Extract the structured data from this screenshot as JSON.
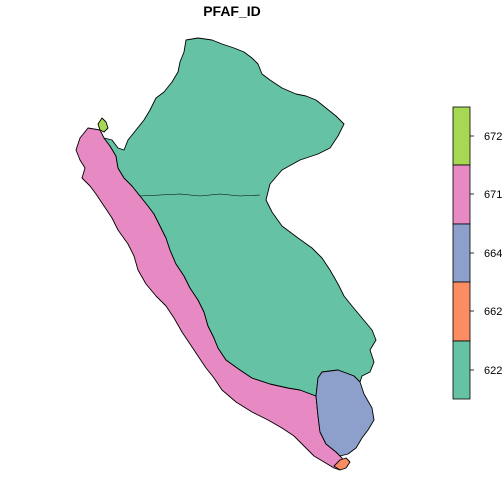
{
  "map": {
    "title": "PFAF_ID",
    "regions": [
      {
        "id": "622",
        "name": "622",
        "color": "#66C2A5"
      },
      {
        "id": "662",
        "name": "662",
        "color": "#FC8D62"
      },
      {
        "id": "664",
        "name": "664",
        "color": "#8DA0CB"
      },
      {
        "id": "671",
        "name": "671",
        "color": "#E78AC3"
      },
      {
        "id": "672",
        "name": "672",
        "color": "#A6D854"
      }
    ]
  },
  "legend": {
    "entries": [
      {
        "label": "672",
        "color": "#A6D854"
      },
      {
        "label": "671",
        "color": "#E78AC3"
      },
      {
        "label": "664",
        "color": "#8DA0CB"
      },
      {
        "label": "662",
        "color": "#FC8D62"
      },
      {
        "label": "622",
        "color": "#66C2A5"
      }
    ]
  }
}
